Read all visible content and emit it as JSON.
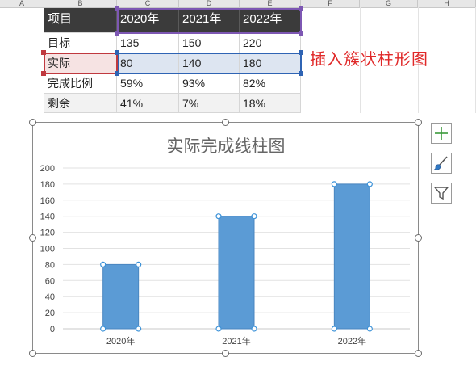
{
  "columns": [
    "A",
    "B",
    "C",
    "D",
    "E",
    "F",
    "G",
    "H"
  ],
  "table": {
    "header": [
      "项目",
      "2020年",
      "2021年",
      "2022年"
    ],
    "rows": [
      {
        "label": "目标",
        "values": [
          "135",
          "150",
          "220"
        ]
      },
      {
        "label": "实际",
        "values": [
          "80",
          "140",
          "180"
        ]
      },
      {
        "label": "完成比例",
        "values": [
          "59%",
          "93%",
          "82%"
        ]
      },
      {
        "label": "剩余",
        "values": [
          "41%",
          "7%",
          "18%"
        ]
      }
    ]
  },
  "annotation": "插入簇状柱形图",
  "chart_data": {
    "type": "bar",
    "title": "实际完成线柱图",
    "categories": [
      "2020年",
      "2021年",
      "2022年"
    ],
    "values": [
      80,
      140,
      180
    ],
    "ylim": [
      0,
      200
    ],
    "yticks": [
      0,
      20,
      40,
      60,
      80,
      100,
      120,
      140,
      160,
      180,
      200
    ],
    "xlabel": "",
    "ylabel": "",
    "grid": true,
    "bar_color": "#5b9bd5"
  },
  "side_buttons": [
    "chart-elements-plus-icon",
    "chart-styles-brush-icon",
    "chart-filter-funnel-icon"
  ],
  "colors": {
    "header_bg": "#3b3b3b",
    "annotation": "#e02828",
    "selection_purple": "#7d57b3",
    "selection_blue": "#2f64b4",
    "selection_red": "#c0393f"
  }
}
